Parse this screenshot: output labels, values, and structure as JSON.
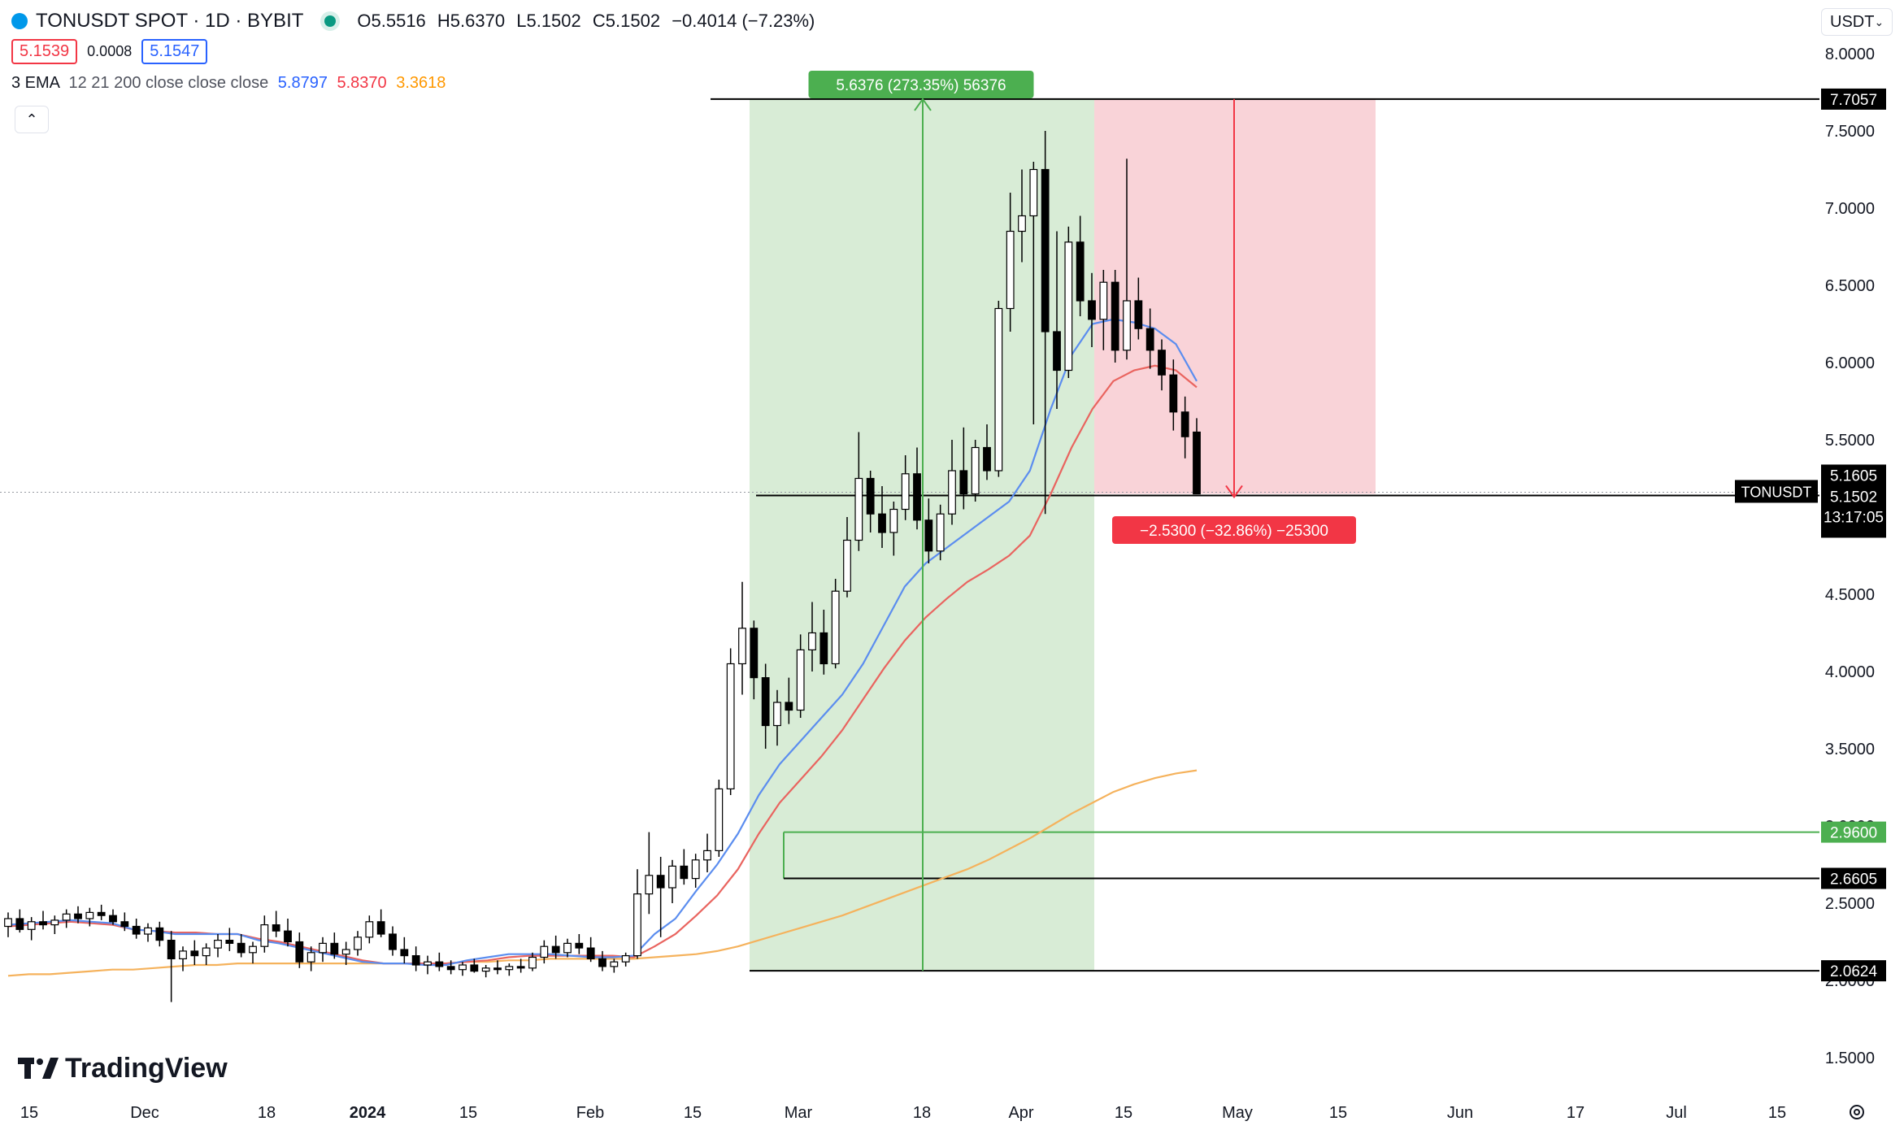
{
  "header": {
    "symbol_title": "TONUSDT SPOT · 1D · BYBIT",
    "ohlc": {
      "open": "O5.5516",
      "high": "H5.6370",
      "low": "L5.1502",
      "close": "C5.1502",
      "change": "−0.4014 (−7.23%)"
    },
    "bid": "5.1539",
    "spread": "0.0008",
    "ask": "5.1547",
    "ema_label": "3 EMA",
    "ema_params": "12 21 200 close close close",
    "ema_values": [
      "5.8797",
      "5.8370",
      "3.3618"
    ],
    "currency_selector": "USDT"
  },
  "colors": {
    "up_candle": "#ffffff",
    "down_candle": "#000000",
    "ema12": "#5b8def",
    "ema21": "#e9645f",
    "ema200": "#f5b25c",
    "profit_zone": "#d8ecd6",
    "loss_zone": "#f9d3d8",
    "green_label": "#4caf50",
    "red_label": "#f23645"
  },
  "footer": {
    "brand": "TradingView"
  },
  "chart_data": {
    "type": "candlestick",
    "symbol": "TONUSDT",
    "y_axis": {
      "ticks": [
        "1.5000",
        "2.0000",
        "2.5000",
        "3.0000",
        "3.5000",
        "4.0000",
        "4.5000",
        "5.0000",
        "5.5000",
        "6.0000",
        "6.5000",
        "7.0000",
        "7.5000",
        "8.0000"
      ],
      "range": [
        1.35,
        8.2
      ]
    },
    "x_axis": {
      "ticks": [
        "15",
        "Dec",
        "18",
        "2024",
        "15",
        "Feb",
        "15",
        "Mar",
        "18",
        "Apr",
        "15",
        "May",
        "15",
        "Jun",
        "17",
        "Jul",
        "15"
      ]
    },
    "candles": [
      {
        "o": 2.35,
        "h": 2.44,
        "l": 2.28,
        "c": 2.4
      },
      {
        "o": 2.4,
        "h": 2.46,
        "l": 2.31,
        "c": 2.33
      },
      {
        "o": 2.33,
        "h": 2.41,
        "l": 2.26,
        "c": 2.38
      },
      {
        "o": 2.38,
        "h": 2.45,
        "l": 2.33,
        "c": 2.36
      },
      {
        "o": 2.36,
        "h": 2.42,
        "l": 2.3,
        "c": 2.39
      },
      {
        "o": 2.39,
        "h": 2.46,
        "l": 2.34,
        "c": 2.43
      },
      {
        "o": 2.43,
        "h": 2.48,
        "l": 2.37,
        "c": 2.4
      },
      {
        "o": 2.4,
        "h": 2.47,
        "l": 2.35,
        "c": 2.44
      },
      {
        "o": 2.44,
        "h": 2.49,
        "l": 2.39,
        "c": 2.42
      },
      {
        "o": 2.42,
        "h": 2.46,
        "l": 2.36,
        "c": 2.38
      },
      {
        "o": 2.38,
        "h": 2.44,
        "l": 2.32,
        "c": 2.35
      },
      {
        "o": 2.35,
        "h": 2.4,
        "l": 2.27,
        "c": 2.3
      },
      {
        "o": 2.3,
        "h": 2.37,
        "l": 2.25,
        "c": 2.34
      },
      {
        "o": 2.34,
        "h": 2.38,
        "l": 2.22,
        "c": 2.26
      },
      {
        "o": 2.26,
        "h": 2.32,
        "l": 1.86,
        "c": 2.14
      },
      {
        "o": 2.14,
        "h": 2.22,
        "l": 2.06,
        "c": 2.19
      },
      {
        "o": 2.19,
        "h": 2.26,
        "l": 2.1,
        "c": 2.16
      },
      {
        "o": 2.16,
        "h": 2.24,
        "l": 2.1,
        "c": 2.21
      },
      {
        "o": 2.21,
        "h": 2.3,
        "l": 2.15,
        "c": 2.26
      },
      {
        "o": 2.26,
        "h": 2.34,
        "l": 2.19,
        "c": 2.24
      },
      {
        "o": 2.24,
        "h": 2.3,
        "l": 2.15,
        "c": 2.18
      },
      {
        "o": 2.18,
        "h": 2.25,
        "l": 2.11,
        "c": 2.22
      },
      {
        "o": 2.22,
        "h": 2.42,
        "l": 2.18,
        "c": 2.36
      },
      {
        "o": 2.36,
        "h": 2.45,
        "l": 2.28,
        "c": 2.32
      },
      {
        "o": 2.32,
        "h": 2.4,
        "l": 2.22,
        "c": 2.25
      },
      {
        "o": 2.25,
        "h": 2.31,
        "l": 2.08,
        "c": 2.12
      },
      {
        "o": 2.12,
        "h": 2.22,
        "l": 2.06,
        "c": 2.18
      },
      {
        "o": 2.18,
        "h": 2.28,
        "l": 2.12,
        "c": 2.24
      },
      {
        "o": 2.24,
        "h": 2.31,
        "l": 2.14,
        "c": 2.17
      },
      {
        "o": 2.17,
        "h": 2.25,
        "l": 2.1,
        "c": 2.2
      },
      {
        "o": 2.2,
        "h": 2.32,
        "l": 2.16,
        "c": 2.28
      },
      {
        "o": 2.28,
        "h": 2.42,
        "l": 2.24,
        "c": 2.38
      },
      {
        "o": 2.38,
        "h": 2.46,
        "l": 2.28,
        "c": 2.3
      },
      {
        "o": 2.3,
        "h": 2.35,
        "l": 2.16,
        "c": 2.2
      },
      {
        "o": 2.2,
        "h": 2.28,
        "l": 2.11,
        "c": 2.16
      },
      {
        "o": 2.16,
        "h": 2.22,
        "l": 2.06,
        "c": 2.1
      },
      {
        "o": 2.1,
        "h": 2.16,
        "l": 2.04,
        "c": 2.12
      },
      {
        "o": 2.12,
        "h": 2.18,
        "l": 2.06,
        "c": 2.09
      },
      {
        "o": 2.09,
        "h": 2.13,
        "l": 2.04,
        "c": 2.07
      },
      {
        "o": 2.07,
        "h": 2.12,
        "l": 2.03,
        "c": 2.1
      },
      {
        "o": 2.1,
        "h": 2.14,
        "l": 2.05,
        "c": 2.06
      },
      {
        "o": 2.06,
        "h": 2.1,
        "l": 2.02,
        "c": 2.08
      },
      {
        "o": 2.08,
        "h": 2.13,
        "l": 2.04,
        "c": 2.07
      },
      {
        "o": 2.07,
        "h": 2.11,
        "l": 2.03,
        "c": 2.09
      },
      {
        "o": 2.09,
        "h": 2.14,
        "l": 2.05,
        "c": 2.08
      },
      {
        "o": 2.08,
        "h": 2.18,
        "l": 2.06,
        "c": 2.15
      },
      {
        "o": 2.15,
        "h": 2.26,
        "l": 2.11,
        "c": 2.22
      },
      {
        "o": 2.22,
        "h": 2.29,
        "l": 2.14,
        "c": 2.18
      },
      {
        "o": 2.18,
        "h": 2.27,
        "l": 2.15,
        "c": 2.24
      },
      {
        "o": 2.24,
        "h": 2.3,
        "l": 2.17,
        "c": 2.21
      },
      {
        "o": 2.21,
        "h": 2.28,
        "l": 2.12,
        "c": 2.14
      },
      {
        "o": 2.14,
        "h": 2.19,
        "l": 2.06,
        "c": 2.09
      },
      {
        "o": 2.09,
        "h": 2.14,
        "l": 2.05,
        "c": 2.12
      },
      {
        "o": 2.12,
        "h": 2.18,
        "l": 2.09,
        "c": 2.16
      },
      {
        "o": 2.16,
        "h": 2.72,
        "l": 2.14,
        "c": 2.56
      },
      {
        "o": 2.56,
        "h": 2.96,
        "l": 2.43,
        "c": 2.68
      },
      {
        "o": 2.68,
        "h": 2.8,
        "l": 2.28,
        "c": 2.6
      },
      {
        "o": 2.6,
        "h": 2.78,
        "l": 2.5,
        "c": 2.74
      },
      {
        "o": 2.74,
        "h": 2.85,
        "l": 2.62,
        "c": 2.66
      },
      {
        "o": 2.66,
        "h": 2.82,
        "l": 2.6,
        "c": 2.78
      },
      {
        "o": 2.78,
        "h": 2.95,
        "l": 2.7,
        "c": 2.84
      },
      {
        "o": 2.84,
        "h": 3.3,
        "l": 2.8,
        "c": 3.24
      },
      {
        "o": 3.24,
        "h": 4.15,
        "l": 3.2,
        "c": 4.05
      },
      {
        "o": 4.05,
        "h": 4.58,
        "l": 3.85,
        "c": 4.28
      },
      {
        "o": 4.28,
        "h": 4.33,
        "l": 3.82,
        "c": 3.96
      },
      {
        "o": 3.96,
        "h": 4.05,
        "l": 3.5,
        "c": 3.65
      },
      {
        "o": 3.65,
        "h": 3.88,
        "l": 3.52,
        "c": 3.8
      },
      {
        "o": 3.8,
        "h": 3.96,
        "l": 3.66,
        "c": 3.75
      },
      {
        "o": 3.75,
        "h": 4.24,
        "l": 3.7,
        "c": 4.14
      },
      {
        "o": 4.14,
        "h": 4.45,
        "l": 4.0,
        "c": 4.25
      },
      {
        "o": 4.25,
        "h": 4.4,
        "l": 3.98,
        "c": 4.05
      },
      {
        "o": 4.05,
        "h": 4.6,
        "l": 4.02,
        "c": 4.52
      },
      {
        "o": 4.52,
        "h": 5.0,
        "l": 4.48,
        "c": 4.85
      },
      {
        "o": 4.85,
        "h": 5.55,
        "l": 4.78,
        "c": 5.25
      },
      {
        "o": 5.25,
        "h": 5.3,
        "l": 4.9,
        "c": 5.02
      },
      {
        "o": 5.02,
        "h": 5.2,
        "l": 4.8,
        "c": 4.9
      },
      {
        "o": 4.9,
        "h": 5.1,
        "l": 4.75,
        "c": 5.05
      },
      {
        "o": 5.05,
        "h": 5.4,
        "l": 4.98,
        "c": 5.28
      },
      {
        "o": 5.28,
        "h": 5.45,
        "l": 4.92,
        "c": 4.98
      },
      {
        "o": 4.98,
        "h": 5.12,
        "l": 4.7,
        "c": 4.78
      },
      {
        "o": 4.78,
        "h": 5.08,
        "l": 4.72,
        "c": 5.02
      },
      {
        "o": 5.02,
        "h": 5.5,
        "l": 4.95,
        "c": 5.3
      },
      {
        "o": 5.3,
        "h": 5.58,
        "l": 5.05,
        "c": 5.15
      },
      {
        "o": 5.15,
        "h": 5.5,
        "l": 5.1,
        "c": 5.45
      },
      {
        "o": 5.45,
        "h": 5.6,
        "l": 5.24,
        "c": 5.3
      },
      {
        "o": 5.3,
        "h": 6.4,
        "l": 5.26,
        "c": 6.35
      },
      {
        "o": 6.35,
        "h": 7.1,
        "l": 6.2,
        "c": 6.85
      },
      {
        "o": 6.85,
        "h": 7.25,
        "l": 6.65,
        "c": 6.95
      },
      {
        "o": 6.95,
        "h": 7.3,
        "l": 5.6,
        "c": 7.25
      },
      {
        "o": 7.25,
        "h": 7.5,
        "l": 5.02,
        "c": 6.2
      },
      {
        "o": 6.2,
        "h": 6.85,
        "l": 5.7,
        "c": 5.95
      },
      {
        "o": 5.95,
        "h": 6.88,
        "l": 5.9,
        "c": 6.78
      },
      {
        "o": 6.78,
        "h": 6.95,
        "l": 6.3,
        "c": 6.4
      },
      {
        "o": 6.4,
        "h": 6.58,
        "l": 6.1,
        "c": 6.28
      },
      {
        "o": 6.28,
        "h": 6.6,
        "l": 6.08,
        "c": 6.52
      },
      {
        "o": 6.52,
        "h": 6.6,
        "l": 6.0,
        "c": 6.08
      },
      {
        "o": 6.08,
        "h": 7.32,
        "l": 6.02,
        "c": 6.4
      },
      {
        "o": 6.4,
        "h": 6.55,
        "l": 6.15,
        "c": 6.22
      },
      {
        "o": 6.22,
        "h": 6.35,
        "l": 5.96,
        "c": 6.08
      },
      {
        "o": 6.08,
        "h": 6.15,
        "l": 5.82,
        "c": 5.92
      },
      {
        "o": 5.92,
        "h": 6.02,
        "l": 5.56,
        "c": 5.68
      },
      {
        "o": 5.68,
        "h": 5.78,
        "l": 5.38,
        "c": 5.52
      },
      {
        "o": 5.55,
        "h": 5.64,
        "l": 5.15,
        "c": 5.15
      }
    ],
    "ema12": [
      2.36,
      2.37,
      2.38,
      2.39,
      2.38,
      2.37,
      2.33,
      2.32,
      2.3,
      2.3,
      2.3,
      2.3,
      2.26,
      2.24,
      2.21,
      2.18,
      2.15,
      2.12,
      2.11,
      2.11,
      2.1,
      2.1,
      2.13,
      2.15,
      2.17,
      2.17,
      2.17,
      2.16,
      2.15,
      2.15,
      2.16,
      2.3,
      2.4,
      2.58,
      2.75,
      2.95,
      3.2,
      3.4,
      3.55,
      3.7,
      3.85,
      4.05,
      4.3,
      4.55,
      4.7,
      4.8,
      4.9,
      5.0,
      5.1,
      5.3,
      5.7,
      6.05,
      6.25,
      6.28,
      6.26,
      6.22,
      6.12,
      5.88
    ],
    "ema21": [
      2.35,
      2.36,
      2.37,
      2.38,
      2.37,
      2.36,
      2.33,
      2.32,
      2.31,
      2.31,
      2.3,
      2.3,
      2.27,
      2.25,
      2.22,
      2.19,
      2.16,
      2.13,
      2.11,
      2.11,
      2.11,
      2.11,
      2.12,
      2.13,
      2.15,
      2.16,
      2.16,
      2.16,
      2.16,
      2.16,
      2.15,
      2.22,
      2.3,
      2.42,
      2.55,
      2.72,
      2.95,
      3.15,
      3.3,
      3.45,
      3.62,
      3.82,
      4.02,
      4.2,
      4.35,
      4.47,
      4.58,
      4.66,
      4.75,
      4.88,
      5.15,
      5.45,
      5.7,
      5.88,
      5.95,
      5.98,
      5.95,
      5.84
    ],
    "ema200": [
      2.03,
      2.04,
      2.04,
      2.05,
      2.06,
      2.07,
      2.07,
      2.08,
      2.09,
      2.1,
      2.1,
      2.11,
      2.11,
      2.11,
      2.11,
      2.11,
      2.11,
      2.11,
      2.11,
      2.11,
      2.11,
      2.11,
      2.12,
      2.12,
      2.13,
      2.13,
      2.14,
      2.14,
      2.14,
      2.14,
      2.14,
      2.15,
      2.16,
      2.17,
      2.19,
      2.22,
      2.26,
      2.3,
      2.34,
      2.38,
      2.42,
      2.47,
      2.52,
      2.57,
      2.62,
      2.67,
      2.72,
      2.78,
      2.85,
      2.92,
      3.0,
      3.08,
      3.15,
      3.22,
      3.27,
      3.31,
      3.34,
      3.36
    ],
    "position": {
      "entry": 2.0624,
      "target": 7.7057,
      "current": 5.1502,
      "profit_label": "5.6376 (273.35%) 56376",
      "loss_label": "−2.5300 (−32.86%) −25300"
    },
    "price_levels": [
      {
        "price": 7.7057,
        "label": "7.7057",
        "style": "black"
      },
      {
        "price": 5.1605,
        "label": "5.1605",
        "style": "black"
      },
      {
        "price": 2.96,
        "label": "2.9600",
        "style": "green"
      },
      {
        "price": 2.6605,
        "label": "2.6605",
        "style": "black"
      },
      {
        "price": 2.0624,
        "label": "2.0624",
        "style": "black"
      }
    ],
    "last_price": {
      "label": "5.1502",
      "symbol": "TONUSDT",
      "countdown": "13:17:05"
    }
  }
}
